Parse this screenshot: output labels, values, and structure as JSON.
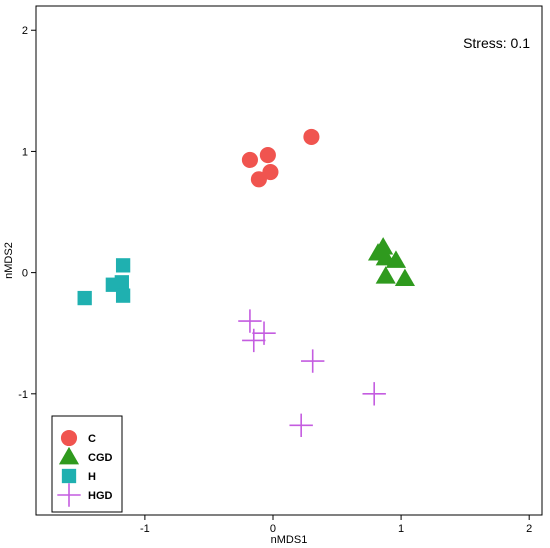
{
  "chart_data": {
    "type": "scatter",
    "xlabel": "nMDS1",
    "ylabel": "nMDS2",
    "xlim": [
      -1.85,
      2.1
    ],
    "ylim": [
      -2.0,
      2.2
    ],
    "xticks": [
      -1,
      0,
      1,
      2
    ],
    "yticks": [
      -1,
      0,
      1,
      2
    ],
    "xtick_labels": [
      "-1",
      "0",
      "1",
      "2"
    ],
    "ytick_labels": [
      "-1",
      "0",
      "1",
      "2"
    ],
    "annotation": "Stress: 0.1",
    "legend_position": "bottom-left",
    "grid": false,
    "series": [
      {
        "name": "C",
        "marker": "circle",
        "color": "#f0544f",
        "points": [
          [
            0.3,
            1.12
          ],
          [
            -0.18,
            0.93
          ],
          [
            -0.04,
            0.97
          ],
          [
            -0.11,
            0.77
          ],
          [
            -0.02,
            0.83
          ]
        ]
      },
      {
        "name": "CGD",
        "marker": "triangle",
        "color": "#2f9a1e",
        "points": [
          [
            0.82,
            0.16
          ],
          [
            0.88,
            0.12
          ],
          [
            0.96,
            0.1
          ],
          [
            0.88,
            -0.03
          ],
          [
            1.03,
            -0.05
          ],
          [
            0.86,
            0.21
          ]
        ]
      },
      {
        "name": "H",
        "marker": "square",
        "color": "#1fb0b0",
        "points": [
          [
            -1.47,
            -0.21
          ],
          [
            -1.25,
            -0.1
          ],
          [
            -1.18,
            -0.08
          ],
          [
            -1.17,
            -0.19
          ],
          [
            -1.17,
            0.06
          ]
        ]
      },
      {
        "name": "HGD",
        "marker": "cross",
        "color": "#c45ce0",
        "points": [
          [
            -0.18,
            -0.4
          ],
          [
            -0.15,
            -0.56
          ],
          [
            -0.07,
            -0.5
          ],
          [
            0.31,
            -0.73
          ],
          [
            0.79,
            -1.0
          ],
          [
            0.22,
            -1.26
          ]
        ]
      }
    ]
  }
}
